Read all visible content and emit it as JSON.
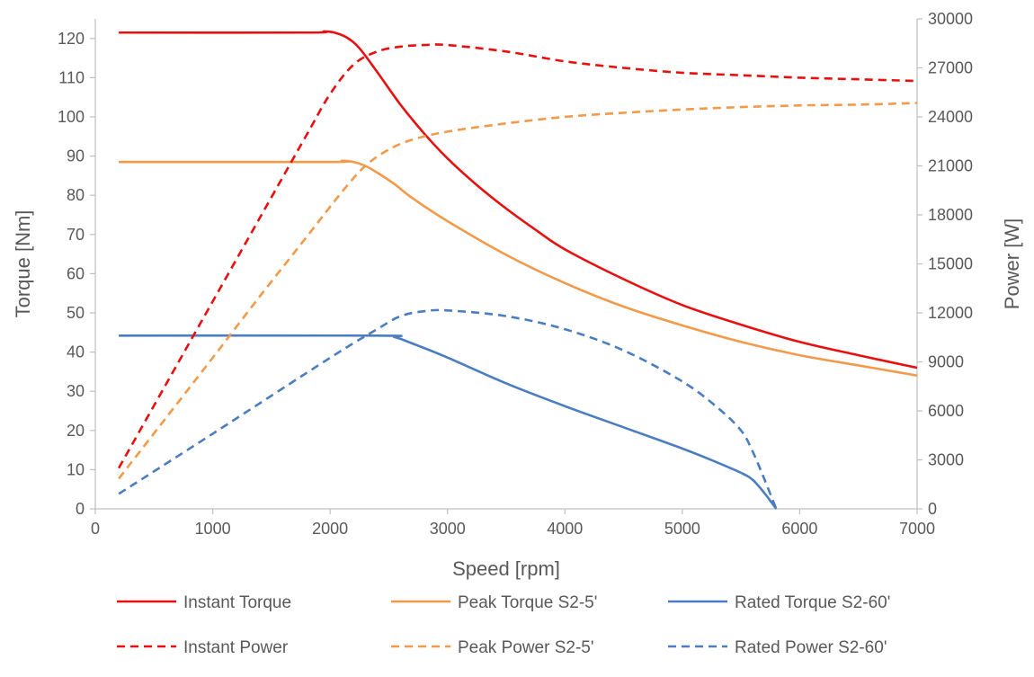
{
  "chart_data": {
    "type": "line",
    "xlabel": "Speed [rpm]",
    "ylabel": "Torque [Nm]",
    "y2label": "Power [W]",
    "xlim": [
      0,
      7000
    ],
    "ylim": [
      0,
      125
    ],
    "y2lim": [
      0,
      30000
    ],
    "xticks": [
      0,
      1000,
      2000,
      3000,
      4000,
      5000,
      6000,
      7000
    ],
    "yticks": [
      0,
      10,
      20,
      30,
      40,
      50,
      60,
      70,
      80,
      90,
      100,
      110,
      120
    ],
    "y2ticks": [
      0,
      3000,
      6000,
      9000,
      12000,
      15000,
      18000,
      21000,
      24000,
      27000,
      30000
    ],
    "grid": false,
    "legend_position": "bottom",
    "series": [
      {
        "name": "Instant Torque",
        "axis": "left",
        "color": "#e8100f",
        "dash": "solid",
        "x": [
          200,
          1800,
          1950,
          2050,
          2150,
          2250,
          2400,
          2600,
          2800,
          3000,
          3250,
          3500,
          3750,
          4000,
          4500,
          5000,
          5500,
          6000,
          6500,
          7000
        ],
        "y": [
          121.5,
          121.5,
          121.8,
          121.4,
          120.1,
          117.5,
          111.5,
          103.1,
          95.8,
          89.4,
          82.6,
          76.6,
          71.2,
          66.2,
          58.6,
          52.0,
          47.0,
          42.6,
          39.2,
          36.0
        ]
      },
      {
        "name": "Peak Torque S2-5'",
        "axis": "left",
        "color": "#f29a4a",
        "dash": "solid",
        "x": [
          200,
          2000,
          2100,
          2200,
          2300,
          2400,
          2550,
          2700,
          3000,
          3500,
          4000,
          4500,
          5000,
          5500,
          6000,
          6500,
          7000
        ],
        "y": [
          88.5,
          88.5,
          88.8,
          88.5,
          87.5,
          85.8,
          82.8,
          79.3,
          73.4,
          64.8,
          57.6,
          51.6,
          46.8,
          42.6,
          39.2,
          36.6,
          34.0
        ]
      },
      {
        "name": "Rated Torque S2-60'",
        "axis": "left",
        "color": "#4a7ec0",
        "dash": "solid",
        "x": [
          200,
          2400,
          2550,
          2700,
          3000,
          3500,
          4000,
          4500,
          5000,
          5300,
          5500,
          5600,
          5700,
          5800
        ],
        "y": [
          44.2,
          44.2,
          43.8,
          42.2,
          38.6,
          32.0,
          26.2,
          20.8,
          15.4,
          11.8,
          9.2,
          7.4,
          4.0,
          0
        ]
      },
      {
        "name": "Instant Power",
        "axis": "right",
        "color": "#e8100f",
        "dash": "dashed",
        "x": [
          200,
          600,
          1000,
          1400,
          1800,
          2000,
          2200,
          2400,
          2600,
          2800,
          3000,
          3500,
          4000,
          4500,
          5000,
          5500,
          6000,
          6500,
          7000
        ],
        "y": [
          2500,
          7600,
          12700,
          17800,
          22900,
          25400,
          27200,
          28000,
          28300,
          28400,
          28400,
          28000,
          27400,
          27000,
          26700,
          26550,
          26400,
          26300,
          26200
        ]
      },
      {
        "name": "Peak Power S2-5'",
        "axis": "right",
        "color": "#f29a4a",
        "dash": "dashed",
        "x": [
          200,
          600,
          1000,
          1400,
          1800,
          2100,
          2300,
          2500,
          2700,
          3000,
          3500,
          4000,
          4500,
          5000,
          5500,
          6000,
          6500,
          7000
        ],
        "y": [
          1850,
          5550,
          9250,
          13000,
          16650,
          19400,
          21000,
          22000,
          22600,
          23100,
          23600,
          24000,
          24250,
          24450,
          24600,
          24700,
          24750,
          24850
        ]
      },
      {
        "name": "Rated Power S2-60'",
        "axis": "right",
        "color": "#4a7ec0",
        "dash": "dashed",
        "x": [
          200,
          1000,
          2000,
          2400,
          2600,
          2800,
          3000,
          3500,
          4000,
          4500,
          5000,
          5300,
          5500,
          5600,
          5700,
          5800
        ],
        "y": [
          920,
          4600,
          9250,
          11000,
          11800,
          12100,
          12150,
          11800,
          11000,
          9700,
          7800,
          6200,
          4800,
          3500,
          1800,
          0
        ]
      }
    ]
  }
}
